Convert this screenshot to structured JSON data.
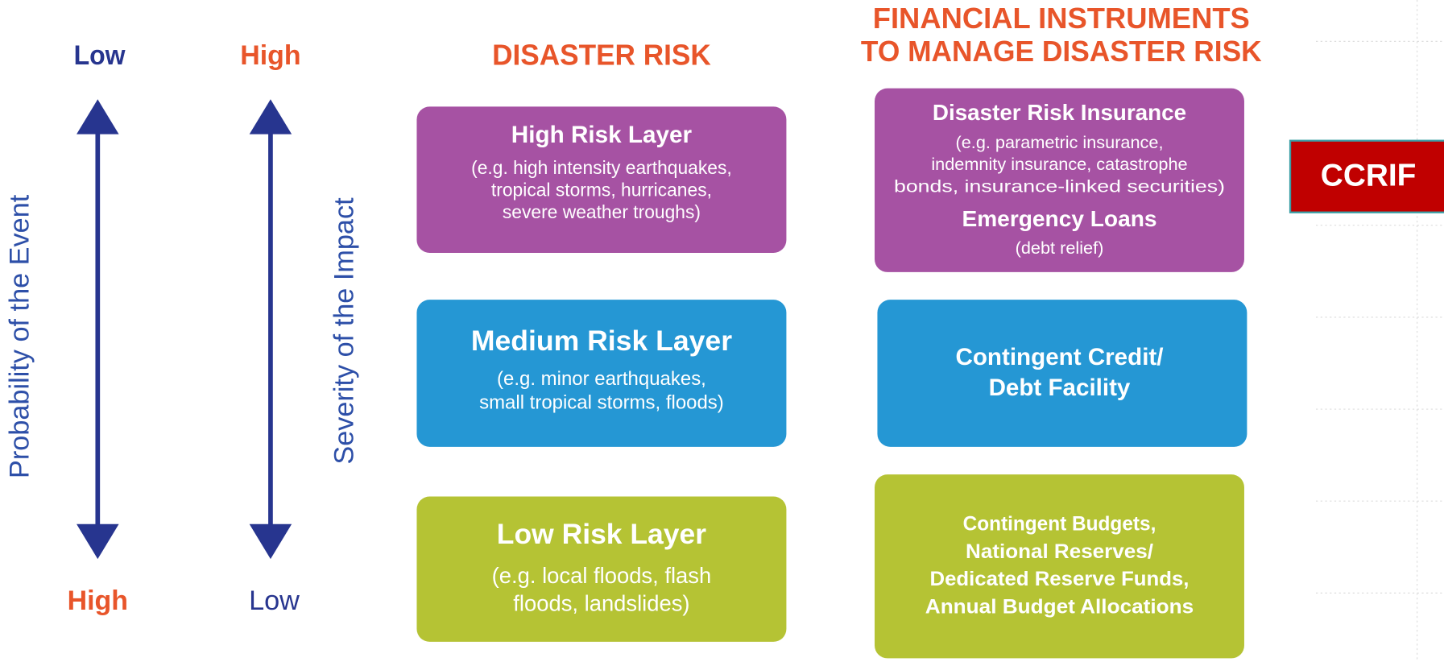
{
  "axes": [
    {
      "top": "Low",
      "bottom": "High",
      "label": "Probability of the Event"
    },
    {
      "top": "High",
      "bottom": "Low",
      "label": "Severity of the Impact"
    }
  ],
  "headers": {
    "risk": "DISASTER RISK",
    "instruments": [
      "FINANCIAL INSTRUMENTS",
      "TO MANAGE DISASTER RISK"
    ]
  },
  "risk_layers": [
    {
      "title": "High Risk Layer",
      "description": [
        "(e.g. high intensity earthquakes,",
        "tropical storms, hurricanes,",
        "severe weather troughs)"
      ]
    },
    {
      "title": "Medium Risk Layer",
      "description": [
        "(e.g. minor earthquakes,",
        "small tropical storms, floods)"
      ]
    },
    {
      "title": "Low Risk Layer",
      "description": [
        "(e.g. local floods, flash",
        "floods, landslides)"
      ]
    }
  ],
  "instruments": [
    {
      "items": [
        {
          "title": "Disaster Risk Insurance",
          "description": [
            "(e.g. parametric insurance,",
            "indemnity insurance, catastrophe",
            "bonds, insurance-linked securities)"
          ]
        },
        {
          "title": "Emergency Loans",
          "description": [
            "(debt relief)"
          ]
        }
      ]
    },
    {
      "lines": [
        "Contingent Credit/",
        "Debt Facility"
      ]
    },
    {
      "lines": [
        "Contingent Budgets,",
        "National Reserves/",
        "Dedicated Reserve Funds,",
        "Annual Budget Allocations"
      ]
    }
  ],
  "badge": "CCRIF"
}
